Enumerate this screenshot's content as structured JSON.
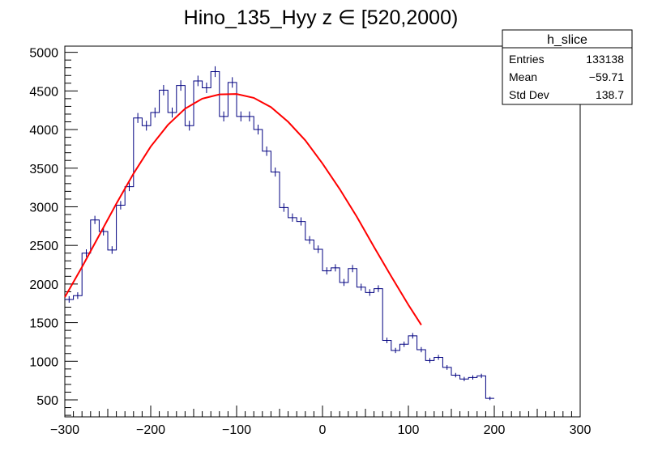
{
  "chart_data": {
    "type": "histogram",
    "title": "Hino_135_Hyy z  ∈ [520,2000)",
    "xlabel": "",
    "ylabel": "",
    "xlim": [
      -300,
      300
    ],
    "ylim": [
      280,
      5080
    ],
    "x_ticks": [
      -300,
      -200,
      -100,
      0,
      100,
      200,
      300
    ],
    "x_tick_labels": [
      "−300",
      "−200",
      "−100",
      "0",
      "100",
      "200",
      "300"
    ],
    "y_ticks": [
      500,
      1000,
      1500,
      2000,
      2500,
      3000,
      3500,
      4000,
      4500,
      5000
    ],
    "y_tick_labels": [
      "500",
      "1000",
      "1500",
      "2000",
      "2500",
      "3000",
      "3500",
      "4000",
      "4500",
      "5000"
    ],
    "bin_width": 10,
    "bin_edges_start": -300,
    "counts": [
      1800,
      1850,
      2400,
      2830,
      2680,
      2440,
      3020,
      3260,
      4150,
      4050,
      4220,
      4510,
      4220,
      4570,
      4050,
      4630,
      4540,
      4750,
      4170,
      4610,
      4170,
      4170,
      4000,
      3720,
      3450,
      2990,
      2860,
      2810,
      2570,
      2450,
      2170,
      2210,
      2020,
      2200,
      1960,
      1890,
      1940,
      1270,
      1140,
      1220,
      1330,
      1150,
      1010,
      1050,
      920,
      820,
      770,
      790,
      810,
      520
    ],
    "fit": {
      "type": "gaussian",
      "color": "#ff0000",
      "x_range": [
        -300,
        115
      ],
      "points": [
        {
          "x": -300,
          "y": 1830
        },
        {
          "x": -280,
          "y": 2220
        },
        {
          "x": -260,
          "y": 2630
        },
        {
          "x": -240,
          "y": 3040
        },
        {
          "x": -220,
          "y": 3430
        },
        {
          "x": -200,
          "y": 3780
        },
        {
          "x": -180,
          "y": 4060
        },
        {
          "x": -160,
          "y": 4270
        },
        {
          "x": -140,
          "y": 4400
        },
        {
          "x": -120,
          "y": 4455
        },
        {
          "x": -100,
          "y": 4460
        },
        {
          "x": -80,
          "y": 4410
        },
        {
          "x": -60,
          "y": 4290
        },
        {
          "x": -40,
          "y": 4100
        },
        {
          "x": -20,
          "y": 3860
        },
        {
          "x": 0,
          "y": 3560
        },
        {
          "x": 20,
          "y": 3230
        },
        {
          "x": 40,
          "y": 2870
        },
        {
          "x": 60,
          "y": 2480
        },
        {
          "x": 80,
          "y": 2100
        },
        {
          "x": 100,
          "y": 1730
        },
        {
          "x": 115,
          "y": 1470
        }
      ]
    },
    "histogram_color": "#000080",
    "grid": false,
    "stats_box": {
      "name": "h_slice",
      "rows": [
        {
          "label": "Entries",
          "value": "133138"
        },
        {
          "label": "Mean",
          "value": "−59.71"
        },
        {
          "label": "Std Dev",
          "value": "138.7"
        }
      ],
      "placement": "top-right"
    }
  }
}
